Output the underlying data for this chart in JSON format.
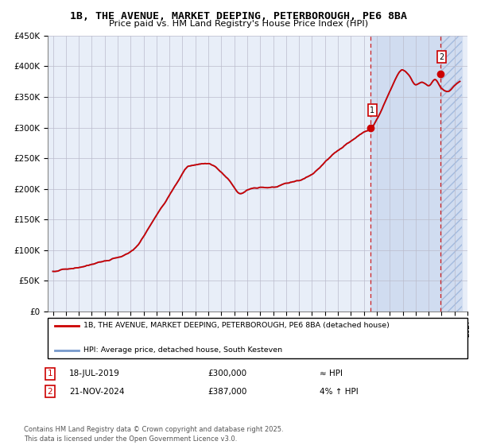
{
  "title_line1": "1B, THE AVENUE, MARKET DEEPING, PETERBOROUGH, PE6 8BA",
  "title_line2": "Price paid vs. HM Land Registry's House Price Index (HPI)",
  "ylim": [
    0,
    450000
  ],
  "yticks": [
    0,
    50000,
    100000,
    150000,
    200000,
    250000,
    300000,
    350000,
    400000,
    450000
  ],
  "ytick_labels": [
    "£0",
    "£50K",
    "£100K",
    "£150K",
    "£200K",
    "£250K",
    "£300K",
    "£350K",
    "£400K",
    "£450K"
  ],
  "hpi_color": "#7799cc",
  "price_color": "#cc0000",
  "bg_color": "#e8eef8",
  "grid_color": "#bbbbcc",
  "sale1_year": 2019.54,
  "sale1_price": 300000,
  "sale2_year": 2024.89,
  "sale2_price": 387000,
  "legend_line1": "1B, THE AVENUE, MARKET DEEPING, PETERBOROUGH, PE6 8BA (detached house)",
  "legend_line2": "HPI: Average price, detached house, South Kesteven",
  "annotation1": "18-JUL-2019",
  "annotation1_val": "£300,000",
  "annotation1_rel": "≈ HPI",
  "annotation2": "21-NOV-2024",
  "annotation2_val": "£387,000",
  "annotation2_rel": "4% ↑ HPI",
  "footer": "Contains HM Land Registry data © Crown copyright and database right 2025.\nThis data is licensed under the Open Government Licence v3.0.",
  "shade_color": "#d0dcf0",
  "hatch_color": "#b8cce4"
}
